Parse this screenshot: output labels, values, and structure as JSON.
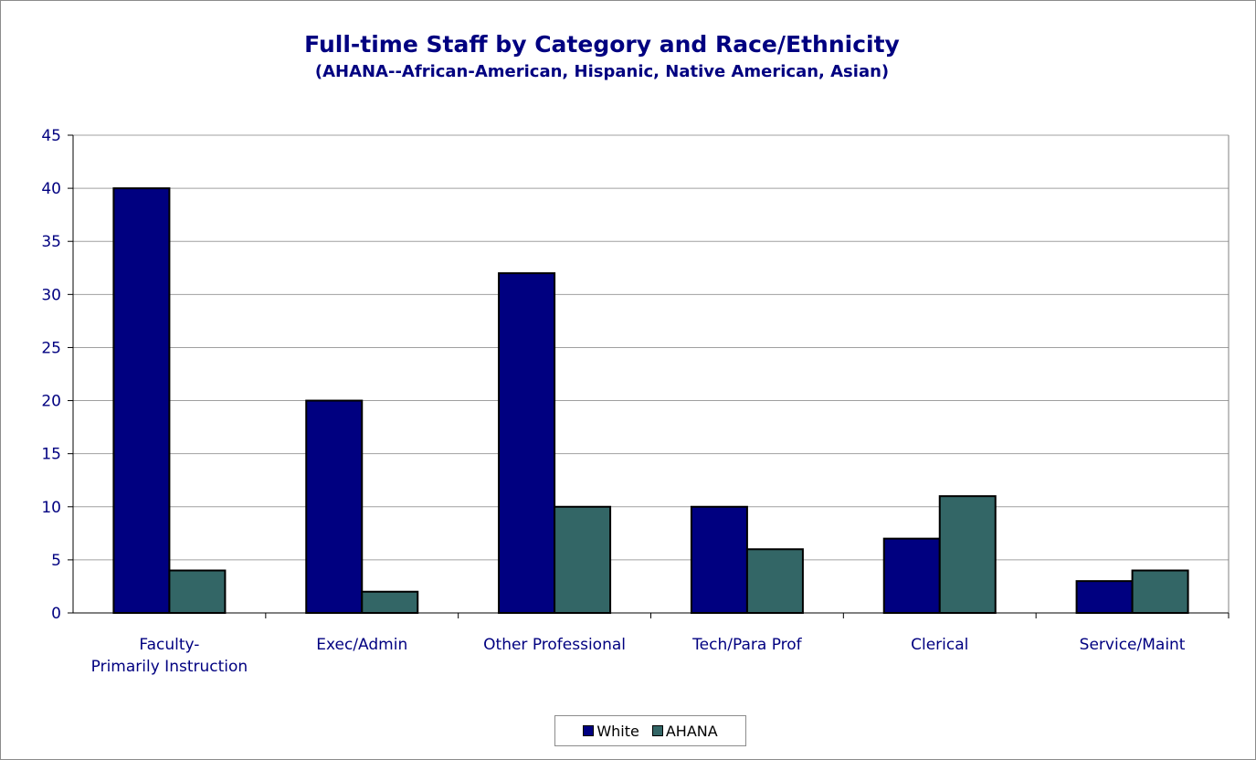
{
  "chart_data": {
    "type": "bar",
    "title": "Full-time Staff by Category and Race/Ethnicity",
    "subtitle": "(AHANA--African-American, Hispanic, Native American, Asian)",
    "categories": [
      [
        "Faculty-",
        "Primarily Instruction"
      ],
      [
        "Exec/Admin"
      ],
      [
        "Other Professional"
      ],
      [
        "Tech/Para Prof"
      ],
      [
        "Clerical"
      ],
      [
        "Service/Maint"
      ]
    ],
    "series": [
      {
        "name": "White",
        "values": [
          40,
          20,
          32,
          10,
          7,
          3
        ],
        "color": "#000080"
      },
      {
        "name": "AHANA",
        "values": [
          4,
          2,
          10,
          6,
          11,
          4
        ],
        "color": "#336666"
      }
    ],
    "ylim": [
      0,
      45
    ],
    "yticks": [
      0,
      5,
      10,
      15,
      20,
      25,
      30,
      35,
      40,
      45
    ],
    "grid": true,
    "legend": "bottom"
  }
}
